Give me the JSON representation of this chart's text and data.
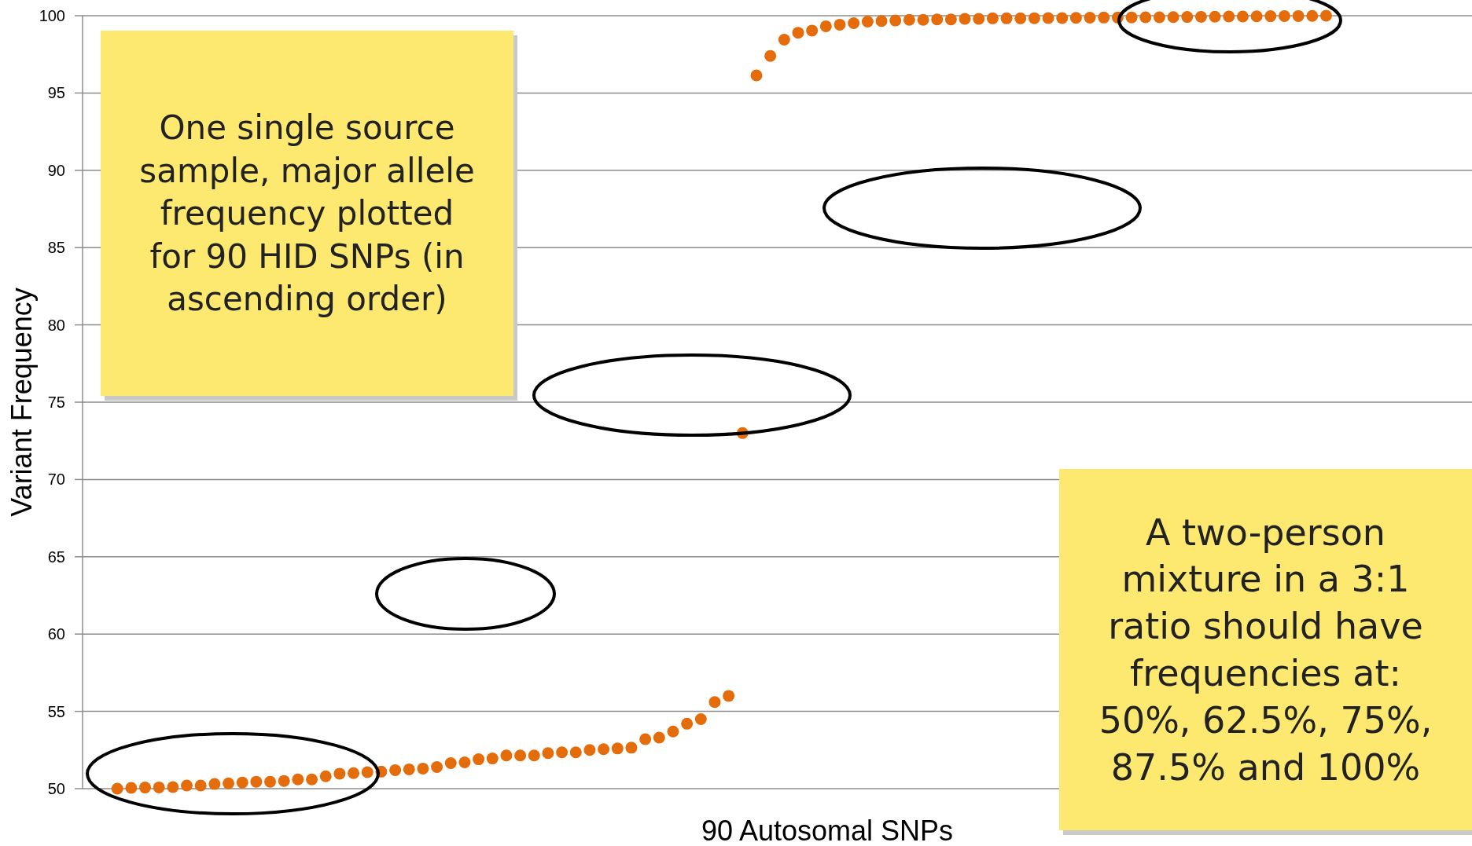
{
  "chart_data": {
    "type": "scatter",
    "xlabel": "90 Autosomal SNPs",
    "ylabel": "Variant Frequency",
    "categories": [
      null,
      null,
      null,
      null,
      null,
      null,
      null,
      null,
      null,
      null,
      null,
      null,
      null,
      null,
      null,
      null,
      null,
      null,
      null,
      null,
      null,
      null,
      null,
      null,
      null,
      null,
      null,
      null,
      null,
      null,
      null,
      null,
      null,
      null,
      null,
      null,
      null,
      null,
      null,
      null,
      null,
      null,
      null,
      null,
      null,
      null,
      null,
      null,
      null,
      null,
      null,
      null,
      null,
      null,
      null,
      null,
      null,
      null,
      null,
      null,
      null,
      null,
      null,
      null,
      null,
      null,
      null,
      null,
      null,
      null,
      null,
      null,
      null,
      null,
      null,
      null,
      null,
      null,
      null,
      null,
      null,
      null,
      null,
      null,
      null,
      null,
      null,
      null,
      null,
      null,
      null,
      null,
      null,
      null,
      null,
      null,
      null,
      null,
      null,
      null
    ],
    "series": [
      {
        "color": "#e46c0a",
        "values": [
          null,
          null,
          50.0,
          50.05,
          50.07,
          50.08,
          50.1,
          50.2,
          50.2,
          50.3,
          50.34,
          50.4,
          50.45,
          50.45,
          50.5,
          50.6,
          50.6,
          50.8,
          50.97,
          51.0,
          51.07,
          51.1,
          51.2,
          51.25,
          51.3,
          51.4,
          51.65,
          51.7,
          51.9,
          51.95,
          52.15,
          52.15,
          52.15,
          52.3,
          52.35,
          52.35,
          52.5,
          52.55,
          52.6,
          52.65,
          53.2,
          53.3,
          53.7,
          54.2,
          54.5,
          55.6,
          56.0,
          73.0,
          96.14,
          97.4,
          98.45,
          98.9,
          99.04,
          99.32,
          99.42,
          99.52,
          99.62,
          99.66,
          99.69,
          99.73,
          99.73,
          99.76,
          99.76,
          99.8,
          99.8,
          99.83,
          99.83,
          99.83,
          99.84,
          99.85,
          99.85,
          99.86,
          99.87,
          99.88,
          99.88,
          99.89,
          99.9,
          99.9,
          99.91,
          99.92,
          99.93,
          99.94,
          99.95,
          99.95,
          99.96,
          99.97,
          99.98,
          99.98,
          99.99,
          100.0,
          null,
          null,
          null,
          null,
          null,
          null,
          null,
          null,
          null,
          null
        ]
      }
    ],
    "ylim": [
      50,
      100
    ],
    "yticks": [
      50,
      55,
      60,
      65,
      70,
      75,
      80,
      85,
      90,
      95,
      100
    ],
    "grid": "y",
    "marker": "circle",
    "tick_labels": "y",
    "annotations": [
      "One single source sample, major allele frequency plotted for 90 HID SNPs (in ascending order)",
      "A two-person mixture in a 3:1 ratio should have frequencies at: 50%, 62.5%, 75%, 87.5% and 100%"
    ]
  }
}
